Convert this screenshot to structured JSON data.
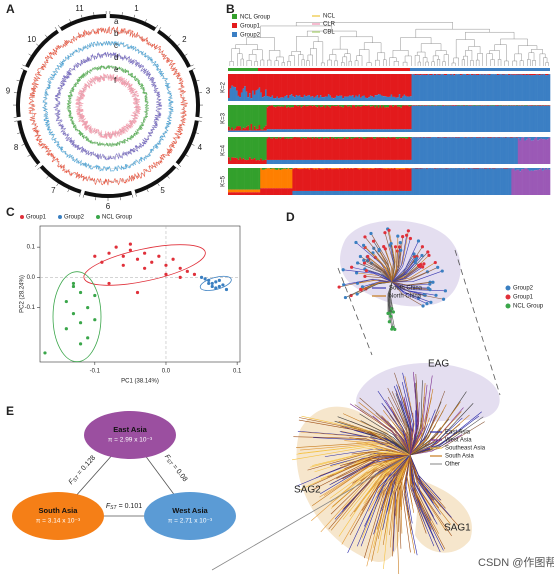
{
  "panel_labels": [
    "A",
    "B",
    "C",
    "D",
    "E"
  ],
  "circos": {
    "chromosomes": [
      "1",
      "2",
      "3",
      "4",
      "5",
      "6",
      "7",
      "8",
      "9",
      "10",
      "11"
    ],
    "tracks": [
      "a",
      "b",
      "c",
      "d",
      "e",
      "f"
    ]
  },
  "structure": {
    "groups": [
      "NCL Group",
      "Group1",
      "Group2"
    ],
    "populations": [
      "NCL",
      "CLR",
      "CBL"
    ],
    "k_labels": [
      "K=2",
      "K=3",
      "K=4",
      "K=5"
    ]
  },
  "chart_data": {
    "type": "scatter",
    "x_label": "PC1 (38.14%)",
    "y_label": "PC2 (28.24%)",
    "xlim": [
      -0.177,
      0.104
    ],
    "ylim": [
      -0.28,
      0.17
    ],
    "xticks": [
      -0.1,
      {
        "value": 0,
        "label": "0.0"
      },
      0.1
    ],
    "yticks": [
      -0.1,
      {
        "value": 0,
        "label": "0.0"
      },
      0.1
    ],
    "legend": "top-left",
    "series": [
      {
        "name": "Group1",
        "color": "#e0303a",
        "x": [
          -0.08,
          -0.07,
          -0.06,
          -0.05,
          -0.04,
          -0.03,
          -0.02,
          -0.01,
          0.0,
          0.01,
          0.02,
          0.03,
          0.04,
          -0.09,
          -0.06,
          -0.03,
          -0.05,
          0.0,
          -0.08,
          -0.04,
          0.02,
          -0.1
        ],
        "values": [
          0.08,
          0.1,
          0.07,
          0.09,
          0.06,
          0.08,
          0.05,
          0.07,
          0.04,
          0.06,
          0.03,
          0.02,
          0.01,
          0.05,
          0.04,
          0.03,
          0.11,
          0.01,
          -0.02,
          -0.05,
          0.0,
          0.07
        ]
      },
      {
        "name": "Group2",
        "color": "#3a7fc1",
        "x": [
          0.05,
          0.06,
          0.065,
          0.07,
          0.075,
          0.08,
          0.055,
          0.07,
          0.06,
          0.085,
          0.075,
          0.065
        ],
        "values": [
          0.0,
          -0.01,
          -0.02,
          -0.015,
          -0.03,
          -0.025,
          -0.005,
          -0.035,
          -0.02,
          -0.04,
          -0.01,
          -0.03
        ]
      },
      {
        "name": "NCL Group",
        "color": "#3aa64a",
        "x": [
          -0.13,
          -0.12,
          -0.14,
          -0.11,
          -0.13,
          -0.12,
          -0.1,
          -0.14,
          -0.11,
          -0.12,
          -0.13,
          -0.1,
          -0.17
        ],
        "values": [
          -0.02,
          -0.05,
          -0.08,
          -0.1,
          -0.12,
          -0.15,
          -0.14,
          -0.17,
          -0.2,
          -0.22,
          -0.03,
          -0.06,
          -0.25
        ]
      }
    ]
  },
  "tree": {
    "groups": [
      "Group2",
      "Group1",
      "NCL Group"
    ],
    "regions_upper": [
      "South China",
      "North China"
    ],
    "regions": [
      "East Asia",
      "West Asia",
      "Southeast Asia",
      "South Asia",
      "Other"
    ],
    "clusters": [
      "EAG",
      "SAG2",
      "SAG1"
    ]
  },
  "diversity": {
    "east_asia": {
      "name": "East Asia",
      "pi": "π = 2.99 x 10⁻³"
    },
    "south_asia": {
      "name": "South Asia",
      "pi": "π = 3.14 x 10⁻³"
    },
    "west_asia": {
      "name": "West Asia",
      "pi": "π = 2.71 x 10⁻³"
    },
    "fst_symbol": "F",
    "fst_sub": "ST",
    "fst_ea_sa": "= 0.128",
    "fst_ea_wa": "= 0.08",
    "fst_sa_wa": "= 0.101"
  },
  "watermark": "CSDN @作图帮"
}
